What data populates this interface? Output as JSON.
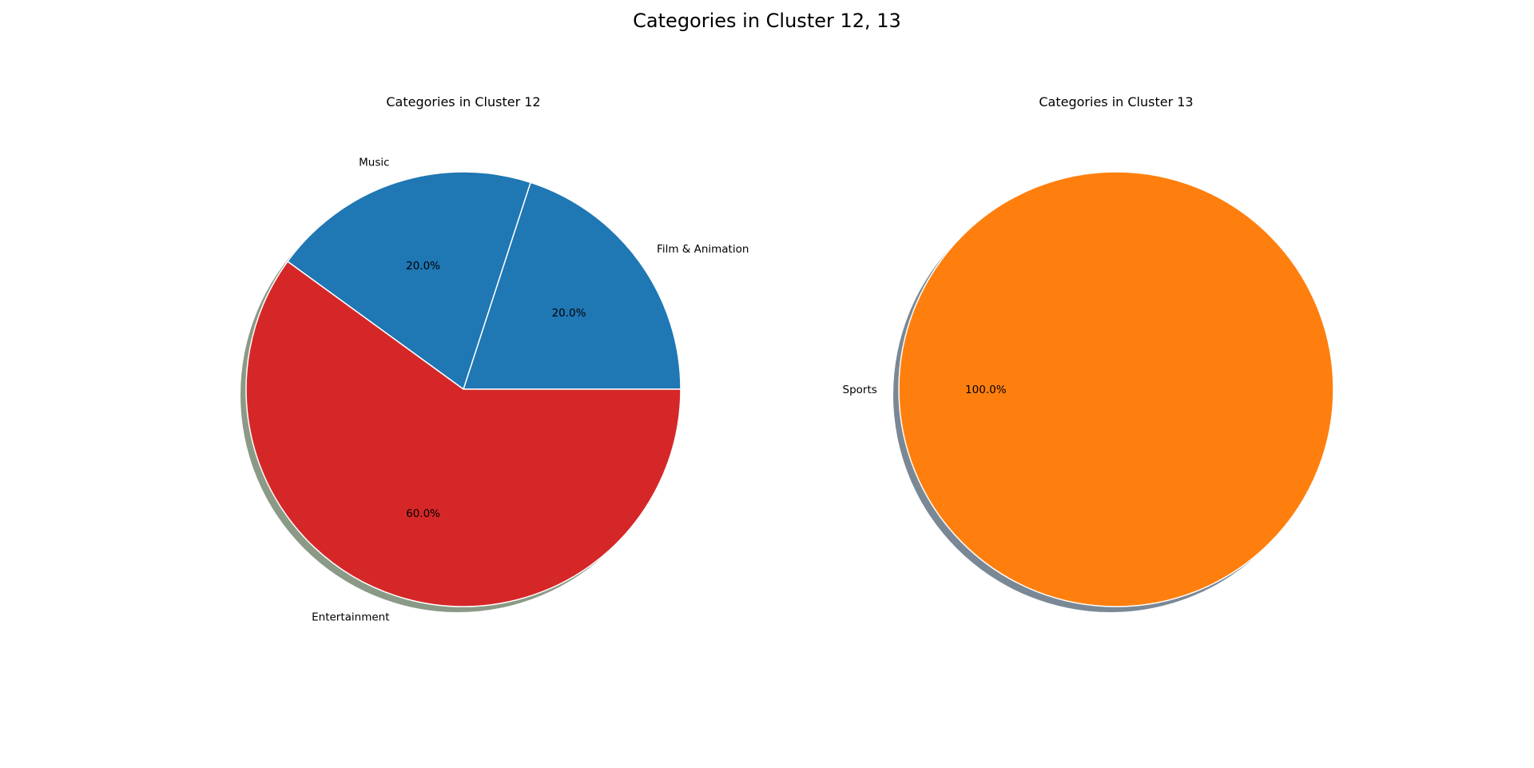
{
  "figure": {
    "title": "Categories in Cluster 12, 13"
  },
  "chart_data": [
    {
      "type": "pie",
      "title": "Categories in Cluster 12",
      "labels": [
        "Film & Animation",
        "Music",
        "Entertainment"
      ],
      "values": [
        20,
        20,
        60
      ],
      "percent_labels": [
        "20.0%",
        "20.0%",
        "60.0%"
      ],
      "colors": [
        "#1f77b4",
        "#1f77b4",
        "#d62728"
      ],
      "shadow_color": "#8a9a86",
      "start_angle": 0,
      "counterclockwise": true,
      "shadow": true
    },
    {
      "type": "pie",
      "title": "Categories in Cluster 13",
      "labels": [
        "Sports"
      ],
      "values": [
        100
      ],
      "percent_labels": [
        "100.0%"
      ],
      "colors": [
        "#ff7f0e"
      ],
      "shadow_color": "#7a8896",
      "start_angle": 0,
      "counterclockwise": true,
      "shadow": true
    }
  ]
}
